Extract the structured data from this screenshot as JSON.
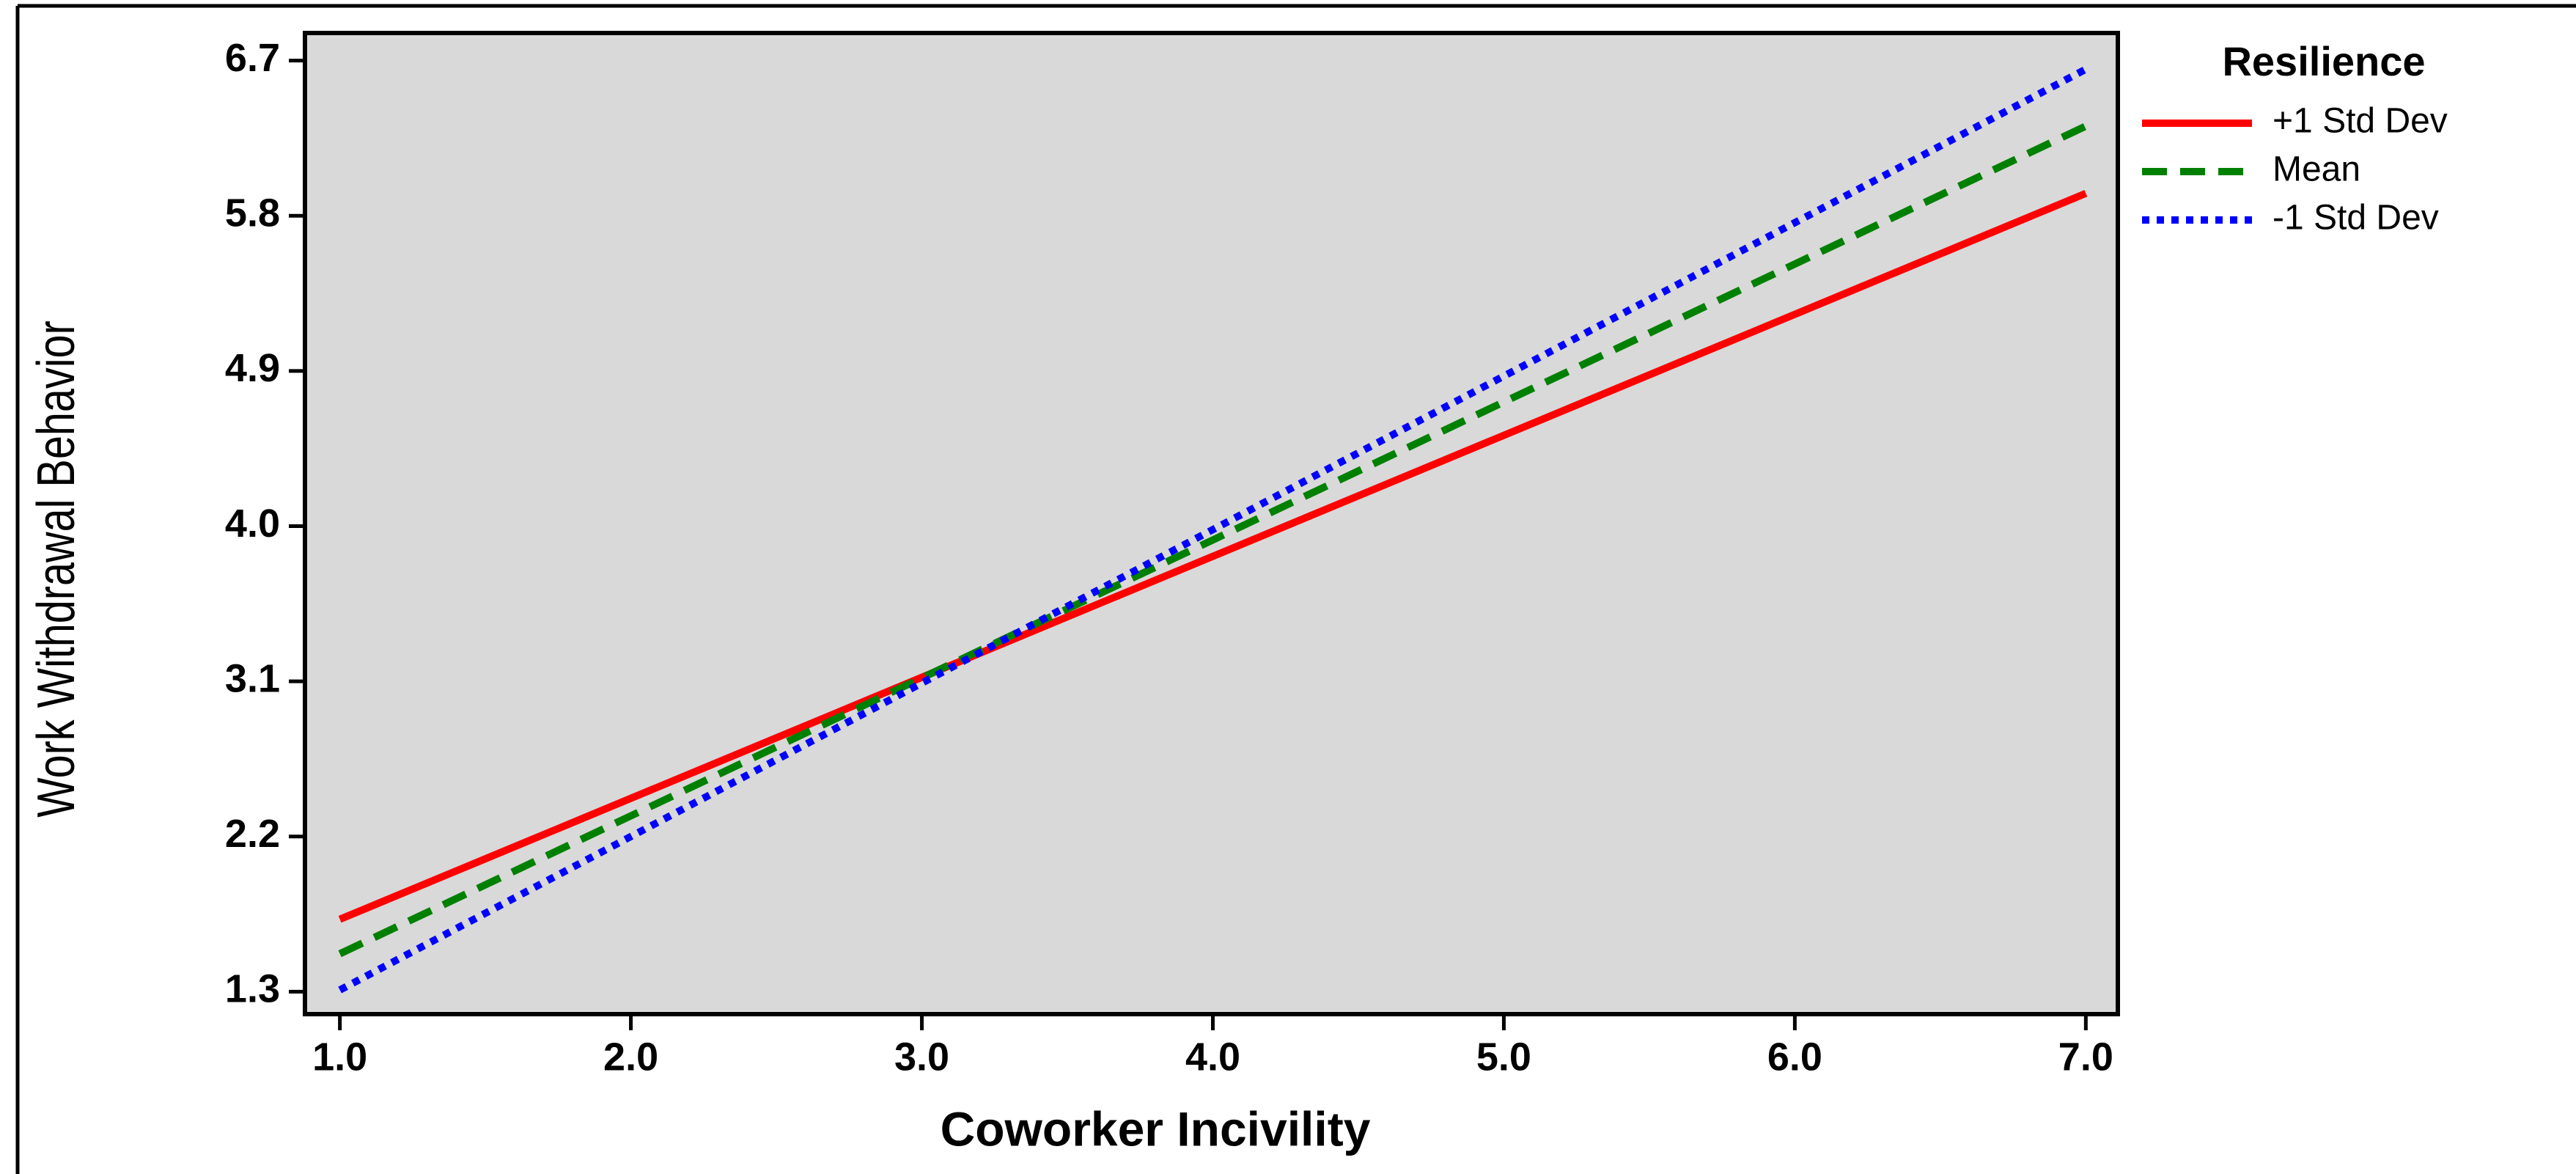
{
  "chart_data": {
    "type": "line",
    "x_label": "Coworker Incivility",
    "y_label": "Work Withdrawal Behavior",
    "legend_title": "Resilience",
    "legend_position": "right",
    "x": [
      1,
      7
    ],
    "series": [
      {
        "name": "+1 Std Dev",
        "color": "#ff0000",
        "line_style": "solid",
        "values": [
          1.72,
          5.93
        ]
      },
      {
        "name": "Mean",
        "color": "#008000",
        "line_style": "dashed",
        "values": [
          1.52,
          6.32
        ]
      },
      {
        "name": "-1 Std Dev",
        "color": "#0000ff",
        "line_style": "dotted",
        "values": [
          1.31,
          6.65
        ]
      }
    ],
    "xlim": [
      0.88,
      7.11
    ],
    "xticks": [
      {
        "value": 1,
        "label": "1.0"
      },
      {
        "value": 2,
        "label": "2.0"
      },
      {
        "value": 3,
        "label": "3.0"
      },
      {
        "value": 4,
        "label": "4.0"
      },
      {
        "value": 5,
        "label": "5.0"
      },
      {
        "value": 6,
        "label": "6.0"
      },
      {
        "value": 7,
        "label": "7.0"
      }
    ],
    "ylim": [
      1.17,
      6.86
    ],
    "yticks": [
      1.3,
      2.2,
      3.1,
      {
        "value": 4,
        "label": "4.0"
      },
      4.9,
      5.8,
      6.7
    ],
    "plot_background": "#d9d9d9"
  }
}
